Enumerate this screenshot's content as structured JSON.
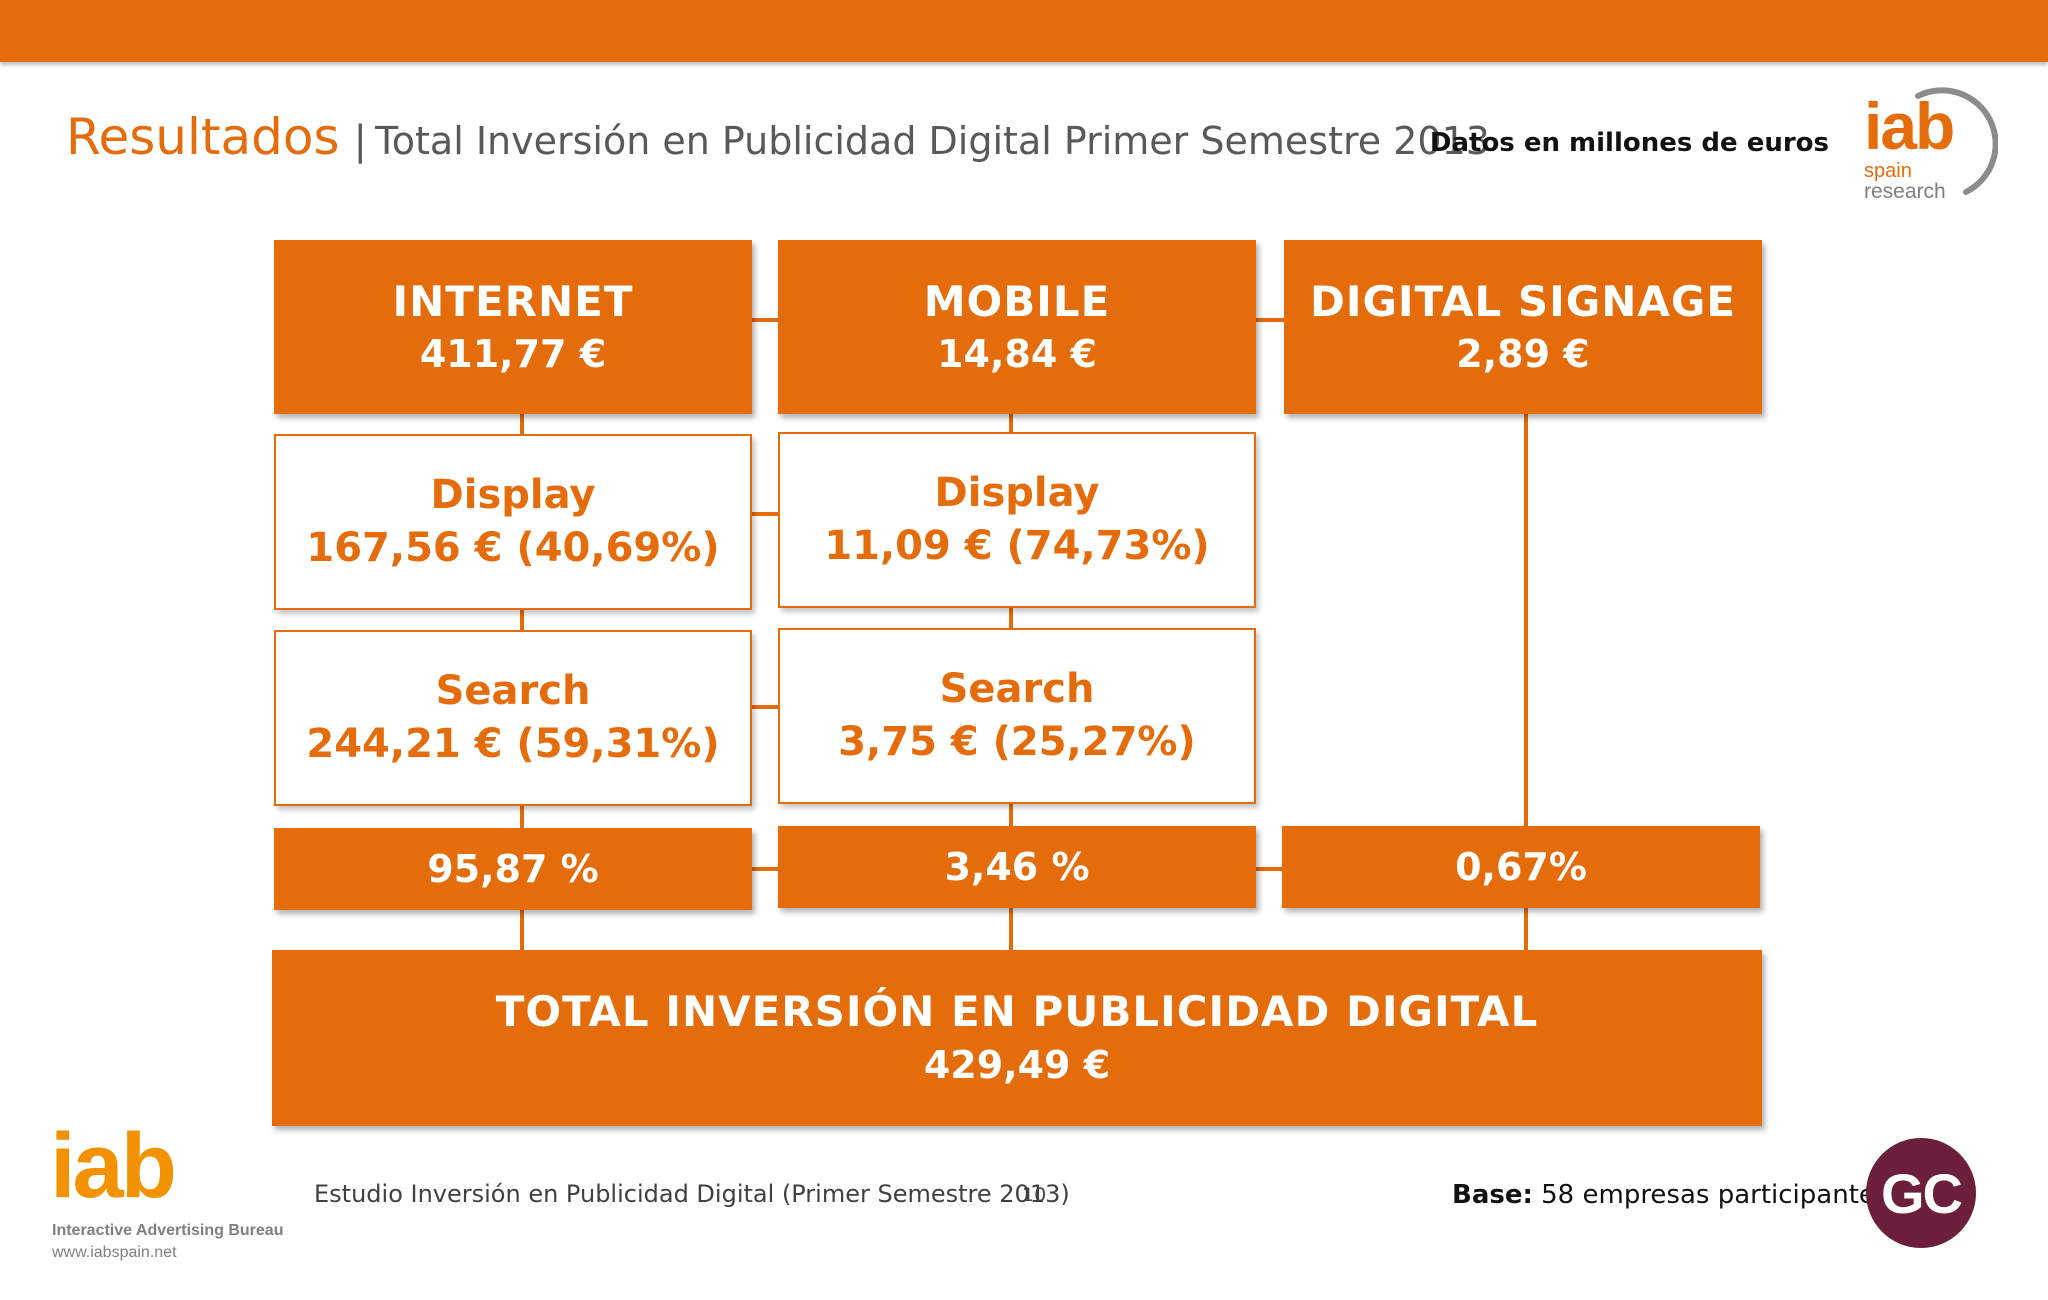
{
  "header": {
    "title": "Resultados",
    "separator": "|",
    "subtitle": "Total Inversión en Publicidad Digital Primer Semestre 2013",
    "units_note": "Datos en millones de euros",
    "logo": {
      "word": "iab",
      "line1": "spain",
      "line2": "research"
    }
  },
  "diagram": {
    "columns": [
      {
        "name": "INTERNET",
        "value": "411,77 €",
        "children": [
          {
            "name": "Display",
            "value": "167,56 € (40,69%)"
          },
          {
            "name": "Search",
            "value": "244,21 € (59,31%)"
          }
        ],
        "share": "95,87 %"
      },
      {
        "name": "MOBILE",
        "value": "14,84 €",
        "children": [
          {
            "name": "Display",
            "value": "11,09 € (74,73%)"
          },
          {
            "name": "Search",
            "value": "3,75 € (25,27%)"
          }
        ],
        "share": "3,46 %"
      },
      {
        "name": "DIGITAL SIGNAGE",
        "value": "2,89 €",
        "children": [],
        "share": "0,67%"
      }
    ],
    "total": {
      "name": "TOTAL INVERSIÓN EN PUBLICIDAD DIGITAL",
      "value": "429,49 €"
    }
  },
  "footer": {
    "logo": {
      "word": "iab",
      "name": "Interactive Advertising Bureau",
      "web": "www.iabspain.net"
    },
    "study": "Estudio Inversión en Publicidad Digital (Primer Semestre 2013)",
    "page": "10",
    "base_label": "Base:",
    "base_text": "58 empresas participantes",
    "badge": "GC"
  },
  "colors": {
    "accent": "#e46c0a",
    "text_gray": "#595959",
    "badge": "#6b1f3a"
  }
}
